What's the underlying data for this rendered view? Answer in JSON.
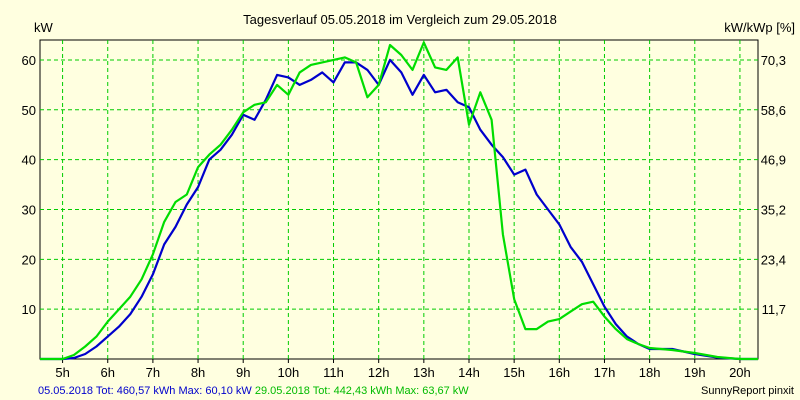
{
  "chart_data": {
    "type": "line",
    "title": "Tagesverlauf 05.05.2018 im Vergleich zum 29.05.2018",
    "ylabel": "kW",
    "ylabel_right": "kW/kWp [%]",
    "ylim": [
      0,
      60
    ],
    "xlim": [
      4.5,
      20.4
    ],
    "grid": true,
    "x_ticks": [
      5,
      6,
      7,
      8,
      9,
      10,
      11,
      12,
      13,
      14,
      15,
      16,
      17,
      18,
      19,
      20
    ],
    "x_tick_labels": [
      "5h",
      "6h",
      "7h",
      "8h",
      "9h",
      "10h",
      "11h",
      "12h",
      "13h",
      "14h",
      "15h",
      "16h",
      "17h",
      "18h",
      "19h",
      "20h"
    ],
    "y_ticks": [
      10,
      20,
      30,
      40,
      50,
      60
    ],
    "y_tick_labels": [
      "10",
      "20",
      "30",
      "40",
      "50",
      "60"
    ],
    "y2_ticks": [
      11.7,
      23.4,
      35.2,
      46.9,
      58.6,
      70.3
    ],
    "y2_tick_labels": [
      "11,7",
      "23,4",
      "35,2",
      "46,9",
      "58,6",
      "70,3"
    ],
    "colors": {
      "series1": "#0000cc",
      "series2": "#00dd00",
      "grid": "#00cc00",
      "background": "#ffffe0",
      "plot_border": "#000000"
    },
    "series": [
      {
        "name": "05.05.2018",
        "color": "#0000cc",
        "points": [
          [
            4.5,
            0
          ],
          [
            5,
            0
          ],
          [
            5.25,
            0.2
          ],
          [
            5.5,
            1
          ],
          [
            5.75,
            2.5
          ],
          [
            6,
            4.5
          ],
          [
            6.25,
            6.5
          ],
          [
            6.5,
            9
          ],
          [
            6.75,
            12.5
          ],
          [
            7,
            17
          ],
          [
            7.25,
            23
          ],
          [
            7.5,
            26.5
          ],
          [
            7.75,
            31
          ],
          [
            8,
            34.5
          ],
          [
            8.25,
            40
          ],
          [
            8.5,
            42
          ],
          [
            8.75,
            45
          ],
          [
            9,
            49
          ],
          [
            9.25,
            48
          ],
          [
            9.5,
            52
          ],
          [
            9.75,
            57
          ],
          [
            10,
            56.5
          ],
          [
            10.25,
            55
          ],
          [
            10.5,
            56
          ],
          [
            10.75,
            57.5
          ],
          [
            11,
            55.5
          ],
          [
            11.25,
            59.5
          ],
          [
            11.5,
            59.5
          ],
          [
            11.75,
            58
          ],
          [
            12,
            55
          ],
          [
            12.25,
            60
          ],
          [
            12.5,
            57.5
          ],
          [
            12.75,
            53
          ],
          [
            13,
            57
          ],
          [
            13.25,
            53.5
          ],
          [
            13.5,
            54
          ],
          [
            13.75,
            51.5
          ],
          [
            14,
            50.5
          ],
          [
            14.25,
            46
          ],
          [
            14.5,
            43
          ],
          [
            14.75,
            40.5
          ],
          [
            15,
            37
          ],
          [
            15.25,
            38
          ],
          [
            15.5,
            33
          ],
          [
            15.75,
            30
          ],
          [
            16,
            27
          ],
          [
            16.25,
            22.5
          ],
          [
            16.5,
            19.5
          ],
          [
            16.75,
            15
          ],
          [
            17,
            10.5
          ],
          [
            17.25,
            7
          ],
          [
            17.5,
            4.5
          ],
          [
            17.75,
            3
          ],
          [
            18,
            2
          ],
          [
            18.5,
            2
          ],
          [
            19,
            1
          ],
          [
            19.5,
            0.3
          ],
          [
            20,
            0
          ],
          [
            20.4,
            0
          ]
        ]
      },
      {
        "name": "29.05.2018",
        "color": "#00dd00",
        "points": [
          [
            4.5,
            0
          ],
          [
            5,
            0
          ],
          [
            5.25,
            0.8
          ],
          [
            5.5,
            2.5
          ],
          [
            5.75,
            4.5
          ],
          [
            6,
            7.5
          ],
          [
            6.25,
            10
          ],
          [
            6.5,
            12.5
          ],
          [
            6.75,
            16
          ],
          [
            7,
            21
          ],
          [
            7.25,
            27.5
          ],
          [
            7.5,
            31.5
          ],
          [
            7.75,
            33
          ],
          [
            8,
            38.5
          ],
          [
            8.25,
            41
          ],
          [
            8.5,
            43
          ],
          [
            8.75,
            46
          ],
          [
            9,
            49.5
          ],
          [
            9.25,
            51
          ],
          [
            9.5,
            51.5
          ],
          [
            9.75,
            55
          ],
          [
            10,
            53
          ],
          [
            10.25,
            57.5
          ],
          [
            10.5,
            59
          ],
          [
            10.75,
            59.5
          ],
          [
            11,
            60
          ],
          [
            11.25,
            60.5
          ],
          [
            11.5,
            59.5
          ],
          [
            11.75,
            52.5
          ],
          [
            12,
            55
          ],
          [
            12.25,
            63
          ],
          [
            12.5,
            61
          ],
          [
            12.75,
            58
          ],
          [
            13,
            63.5
          ],
          [
            13.25,
            58.5
          ],
          [
            13.5,
            58
          ],
          [
            13.75,
            60.5
          ],
          [
            14,
            47
          ],
          [
            14.25,
            53.5
          ],
          [
            14.5,
            48
          ],
          [
            14.75,
            25
          ],
          [
            15,
            12
          ],
          [
            15.25,
            6
          ],
          [
            15.5,
            6
          ],
          [
            15.75,
            7.5
          ],
          [
            16,
            8
          ],
          [
            16.25,
            9.5
          ],
          [
            16.5,
            11
          ],
          [
            16.75,
            11.5
          ],
          [
            17,
            8.5
          ],
          [
            17.25,
            6
          ],
          [
            17.5,
            4
          ],
          [
            17.75,
            3
          ],
          [
            18,
            2.2
          ],
          [
            18.5,
            1.8
          ],
          [
            19,
            1.2
          ],
          [
            19.5,
            0.4
          ],
          [
            20,
            0
          ],
          [
            20.4,
            0
          ]
        ]
      }
    ]
  },
  "footer": {
    "series1_text": "05.05.2018 Tot: 460,57 kWh Max: 60,10 kW",
    "series2_text": "29.05.2018 Tot: 442,43 kWh Max: 63,67 kW",
    "credit": "SunnyReport pinxit"
  }
}
